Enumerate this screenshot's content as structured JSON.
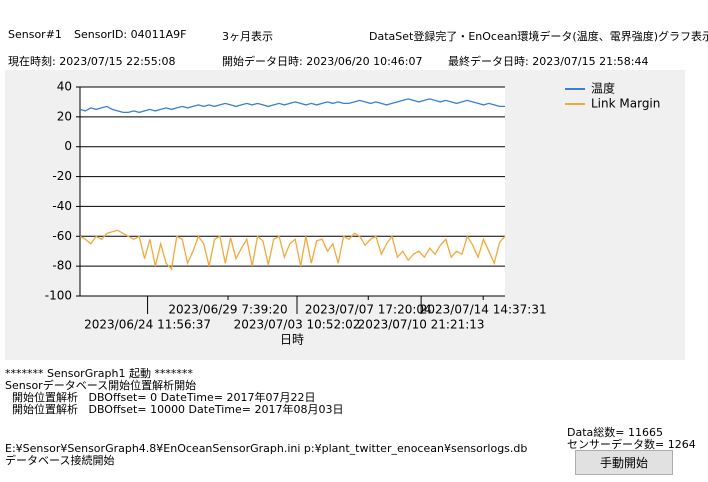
{
  "header": {
    "sensor": "Sensor#1",
    "sensor_id": "SensorID: 04011A9F",
    "range": "3ヶ月表示",
    "status": "DataSet登録完了・EnOcean環境データ(温度、電界強度)グラフ表示完",
    "now": "現在時刻: 2023/07/15 22:55:08",
    "start": "開始データ日時: 2023/06/20 10:46:07",
    "last": "最終データ日時: 2023/07/15 21:58:44"
  },
  "chart_data": {
    "type": "line",
    "x_label": "日時",
    "xlim": [
      "2023/06/20 10:46:07",
      "2023/07/15 21:58:44"
    ],
    "xticks": [
      "2023/06/24 11:56:37",
      "2023/06/29 7:39:20",
      "2023/07/03 10:52:02",
      "2023/07/07 17:20:04",
      "2023/07/10 21:21:13",
      "2023/07/14 14:37:31"
    ],
    "ylim": [
      -100,
      40
    ],
    "yticks": [
      -100,
      -80,
      -60,
      -40,
      -20,
      0,
      20,
      40
    ],
    "grid": true,
    "legend": "right",
    "series": [
      {
        "name": "温度",
        "color": "#3a7fd5",
        "values": [
          25,
          24,
          26,
          25,
          26,
          27,
          25,
          24,
          23,
          23,
          24,
          23,
          24,
          25,
          24,
          25,
          26,
          25,
          26,
          27,
          26,
          27,
          28,
          27,
          28,
          27,
          28,
          29,
          28,
          27,
          28,
          29,
          28,
          29,
          28,
          27,
          28,
          29,
          28,
          29,
          30,
          29,
          28,
          29,
          28,
          29,
          30,
          29,
          30,
          29,
          29,
          30,
          31,
          30,
          29,
          30,
          29,
          28,
          29,
          30,
          31,
          32,
          31,
          30,
          31,
          32,
          31,
          30,
          31,
          30,
          29,
          30,
          31,
          30,
          29,
          28,
          29,
          28,
          27,
          27
        ]
      },
      {
        "name": "Link Margin",
        "color": "#f2a93b",
        "values": [
          -60,
          -62,
          -65,
          -60,
          -62,
          -58,
          -57,
          -56,
          -58,
          -60,
          -62,
          -60,
          -75,
          -62,
          -80,
          -65,
          -78,
          -82,
          -60,
          -62,
          -78,
          -70,
          -60,
          -65,
          -80,
          -62,
          -60,
          -78,
          -61,
          -75,
          -68,
          -62,
          -80,
          -60,
          -63,
          -79,
          -62,
          -60,
          -74,
          -65,
          -62,
          -80,
          -60,
          -78,
          -63,
          -62,
          -70,
          -65,
          -78,
          -60,
          -62,
          -58,
          -60,
          -66,
          -62,
          -60,
          -72,
          -65,
          -60,
          -74,
          -70,
          -76,
          -72,
          -70,
          -74,
          -68,
          -72,
          -66,
          -62,
          -74,
          -70,
          -72,
          -60,
          -66,
          -74,
          -62,
          -70,
          -78,
          -64,
          -60
        ]
      }
    ]
  },
  "log1": [
    "******* SensorGraph1 起動 *******",
    "Sensorデータベース開始位置解析開始",
    "  開始位置解析   DBOffset= 0 DateTime= 2017年07月22日",
    "  開始位置解析   DBOffset= 10000 DateTime= 2017年08月03日"
  ],
  "log2": [
    "E:¥Sensor¥SensorGraph4.8¥EnOceanSensorGraph.ini p:¥plant_twitter_enocean¥sensorlogs.db",
    "データベース接続開始"
  ],
  "stats": {
    "total": "Data総数= 11665",
    "sensor_count": "センサーデータ数= 1264"
  },
  "button": "手動開始"
}
